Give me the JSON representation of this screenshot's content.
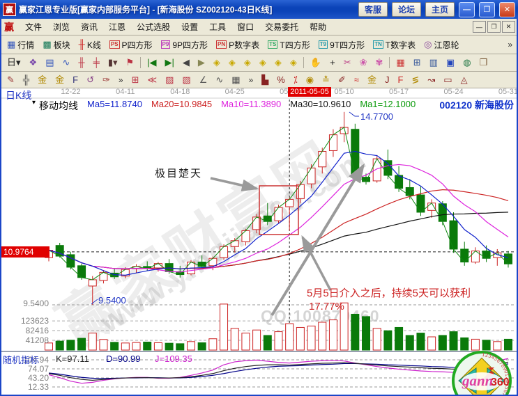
{
  "window": {
    "title": "赢家江恩专业版[赢家内部服务平台] - [新海股份  SZ002120-43日K线]",
    "logo_glyph": "赢",
    "buttons": [
      {
        "name": "service",
        "label": "客服"
      },
      {
        "name": "forum",
        "label": "论坛"
      },
      {
        "name": "home",
        "label": "主页"
      }
    ],
    "controls": {
      "minimize": "—",
      "maximize": "❐",
      "close": "✕"
    }
  },
  "menu": {
    "logo": "赢",
    "items": [
      "文件",
      "浏览",
      "资讯",
      "江恩",
      "公式选股",
      "设置",
      "工具",
      "窗口",
      "交易委托",
      "帮助"
    ],
    "controls": [
      "—",
      "❐",
      "✕"
    ]
  },
  "toolbar_main": {
    "overflow": "»",
    "items": [
      {
        "name": "quotes",
        "label": "行情",
        "glyph": "▦",
        "color": "#3355bb"
      },
      {
        "name": "sectors",
        "label": "板块",
        "glyph": "▩",
        "color": "#117755"
      },
      {
        "name": "kline",
        "label": "K线",
        "glyph": "╫",
        "color": "#cc2222"
      },
      {
        "name": "p-square",
        "label": "P四方形",
        "badge": "PS",
        "color": "#cc3333"
      },
      {
        "name": "9p-square",
        "label": "9P四方形",
        "badge": "P9",
        "color": "#bb33bb"
      },
      {
        "name": "p-digit-table",
        "label": "P数字表",
        "badge": "PN",
        "color": "#cc3333"
      },
      {
        "name": "t-square",
        "label": "T四方形",
        "badge": "TS",
        "color": "#33aa66"
      },
      {
        "name": "9t-square",
        "label": "9T四方形",
        "badge": "T9",
        "color": "#2299aa"
      },
      {
        "name": "t-digit-table",
        "label": "T数字表",
        "badge": "TN",
        "color": "#2299aa"
      },
      {
        "name": "gann-wheel",
        "label": "江恩轮",
        "glyph": "◎",
        "color": "#884499"
      }
    ]
  },
  "toolbar_nav": {
    "items": [
      {
        "name": "kline-period-day",
        "glyph": "日▾",
        "color": "#222222"
      },
      {
        "name": "pattern-tool",
        "glyph": "❖",
        "color": "#7744aa"
      },
      {
        "name": "info-panel",
        "glyph": "▤",
        "color": "#3355bb"
      },
      {
        "name": "trend-curve",
        "glyph": "∿",
        "color": "#3355bb"
      },
      {
        "name": "volume-columns",
        "glyph": "╫",
        "color": "#bb3344"
      },
      {
        "name": "bar-columns",
        "glyph": "╪",
        "color": "#bb3344"
      },
      {
        "name": "candle-style",
        "glyph": "▮▾",
        "color": "#553333"
      },
      {
        "name": "figure-tool",
        "glyph": "⚑",
        "color": "#bb3344"
      },
      {
        "sep": true
      },
      {
        "name": "first-bar",
        "glyph": "|◀",
        "color": "#117711"
      },
      {
        "name": "last-bar",
        "glyph": "▶|",
        "color": "#117711"
      },
      {
        "name": "prev-bar",
        "glyph": "◀",
        "color": "#444444"
      },
      {
        "name": "next-bar",
        "glyph": "▶",
        "color": "#888855"
      },
      {
        "name": "shift-left",
        "glyph": "◈",
        "color": "#c8a800"
      },
      {
        "name": "shift-right",
        "glyph": "◈",
        "color": "#c8a800"
      },
      {
        "name": "zoom-in-h",
        "glyph": "◈",
        "color": "#c8a800"
      },
      {
        "name": "zoom-out-h",
        "glyph": "◈",
        "color": "#c8a800"
      },
      {
        "name": "zoom-in-v",
        "glyph": "◈",
        "color": "#c8a800"
      },
      {
        "name": "zoom-out-v",
        "glyph": "◈",
        "color": "#c8a800"
      },
      {
        "sep": true
      },
      {
        "name": "drag-hand",
        "glyph": "✋",
        "color": "#996633"
      },
      {
        "name": "crosshair",
        "glyph": "+",
        "color": "#222222"
      },
      {
        "name": "annotate-tool",
        "glyph": "✂",
        "color": "#bb4488"
      },
      {
        "name": "flower-tool",
        "glyph": "❀",
        "color": "#cc55aa"
      },
      {
        "name": "mind-tool",
        "glyph": "✾",
        "color": "#cc55aa"
      },
      {
        "sep": true
      },
      {
        "name": "calendar",
        "glyph": "▦",
        "color": "#cc3333"
      },
      {
        "name": "calculator",
        "glyph": "⊞",
        "color": "#335599"
      },
      {
        "name": "notebook",
        "glyph": "▥",
        "color": "#335599"
      },
      {
        "name": "save-disk",
        "glyph": "▣",
        "color": "#2244bb"
      },
      {
        "name": "web-globe",
        "glyph": "◍",
        "color": "#227744"
      },
      {
        "name": "toolbox",
        "glyph": "❒",
        "color": "#775533"
      }
    ]
  },
  "toolbar_draw": {
    "overflow": "»",
    "groups": [
      [
        {
          "name": "draw-pencil",
          "glyph": "✎",
          "color": "#993333"
        },
        {
          "name": "grid-ruler",
          "glyph": "╬",
          "color": "#444444"
        },
        {
          "name": "gold-grid",
          "glyph": "金",
          "color": "#b08800"
        },
        {
          "name": "gold-channel",
          "glyph": "金",
          "color": "#b08800"
        },
        {
          "name": "fib-tool",
          "glyph": "F",
          "color": "#333377"
        },
        {
          "name": "arc-cycle",
          "glyph": "↺",
          "color": "#884488"
        },
        {
          "name": "brush-tool",
          "glyph": "✑",
          "color": "#993333"
        }
      ],
      [
        {
          "name": "gann-box-tool",
          "glyph": "⊞",
          "color": "#bb3344"
        },
        {
          "name": "gann-fan",
          "glyph": "≪",
          "color": "#bb3344"
        },
        {
          "name": "hatch-box",
          "glyph": "▨",
          "color": "#bb3344"
        },
        {
          "name": "hatch-box2",
          "glyph": "▧",
          "color": "#bb3344"
        },
        {
          "name": "trend-angle",
          "glyph": "∠",
          "color": "#555555"
        },
        {
          "name": "zigzag-line",
          "glyph": "∿",
          "color": "#555555"
        },
        {
          "name": "grid-overlay",
          "glyph": "▦",
          "color": "#555555"
        }
      ],
      [
        {
          "name": "stats-tool",
          "glyph": "▙",
          "color": "#882222"
        },
        {
          "name": "percent-change",
          "glyph": "%",
          "color": "#882222"
        },
        {
          "name": "percent-line",
          "glyph": "⁒",
          "color": "#cc2222"
        },
        {
          "name": "gold-circle",
          "glyph": "◉",
          "color": "#b08800"
        },
        {
          "name": "gold-level",
          "glyph": "≛",
          "color": "#b08800"
        },
        {
          "name": "marker-pen",
          "glyph": "✐",
          "color": "#882222"
        },
        {
          "name": "wave-rule",
          "glyph": "≈",
          "color": "#cc2222"
        },
        {
          "name": "gold-ratio",
          "glyph": "金",
          "color": "#b08800"
        },
        {
          "name": "j-line",
          "glyph": "J",
          "color": "#882222"
        },
        {
          "name": "f-line",
          "glyph": "F",
          "color": "#cc2222"
        },
        {
          "name": "band-tool",
          "glyph": "≶",
          "color": "#b08800"
        },
        {
          "name": "regress-line",
          "glyph": "↝",
          "color": "#882222"
        },
        {
          "name": "rect-zone",
          "glyph": "▭",
          "color": "#882222"
        },
        {
          "name": "tri-zone",
          "glyph": "◬",
          "color": "#882222"
        }
      ]
    ]
  },
  "chart": {
    "pane_label": "日K线",
    "legend": {
      "marker": "▾",
      "title": "移动均线",
      "ma5": "Ma5=11.8740",
      "ma20": "Ma20=10.9845",
      "ma10": "Ma10=11.3890",
      "ma30": "Ma30=10.9610",
      "ma1": "Ma1=12.1000"
    },
    "stock_label": "002120 新海股份",
    "date_badge": "2011-05-05",
    "price_badge": "10.9764",
    "price_axis_low": "9.5400",
    "low_callout": "9.5400",
    "high_callout": "14.7700",
    "volume_ticks": [
      "123623",
      "82416",
      "41208"
    ],
    "annotations": {
      "box_label": "极目楚天",
      "note_line1": "5月5日介入之后，持续5天可以获利",
      "note_line2": "17.77%"
    },
    "watermarks": {
      "brand": "赢家财富网",
      "site": "www.yingjia360.com",
      "qq": "QQ:100870460"
    }
  },
  "kdj": {
    "label": "随机指标",
    "k": "K=97.11",
    "d": "D=90.99",
    "j": "J=109.35",
    "ticks": [
      "104.94",
      "74.07",
      "43.20",
      "12.33"
    ]
  },
  "logo": {
    "word": "gann",
    "num": "360",
    "digits": "1234567890123456789012345"
  },
  "chart_data": {
    "type": "candlestick+volume+kdj",
    "title": "SZ002120 新海股份 43日K线",
    "x_dates": [
      {
        "label": "12-22",
        "index": 2
      },
      {
        "label": "04-11",
        "index": 7
      },
      {
        "label": "04-18",
        "index": 12
      },
      {
        "label": "04-25",
        "index": 17
      },
      {
        "label": "05-02",
        "index": 22
      },
      {
        "label": "05-10",
        "index": 27
      },
      {
        "label": "05-17",
        "index": 32
      },
      {
        "label": "05-24",
        "index": 37
      },
      {
        "label": "05-31",
        "index": 42
      }
    ],
    "highlight_index": 22,
    "price_gridline": 10.9764,
    "low_gridline": 9.54,
    "high_value": 14.77,
    "low_value": 9.54,
    "volume_grid": [
      123623,
      82416,
      41208
    ],
    "kdj_grid": [
      104.94,
      74.07,
      43.2,
      12.33
    ],
    "candles": [
      [
        10.82,
        11.12,
        10.72,
        11.02
      ],
      [
        11.15,
        11.22,
        10.82,
        10.86
      ],
      [
        10.9,
        10.98,
        10.5,
        10.56
      ],
      [
        10.6,
        10.66,
        10.22,
        10.28
      ],
      [
        10.05,
        10.32,
        9.54,
        10.22
      ],
      [
        10.2,
        10.48,
        10.12,
        10.42
      ],
      [
        10.4,
        10.52,
        10.24,
        10.3
      ],
      [
        10.32,
        10.56,
        10.26,
        10.5
      ],
      [
        10.52,
        10.64,
        10.4,
        10.58
      ],
      [
        10.58,
        10.72,
        10.46,
        10.52
      ],
      [
        10.54,
        10.7,
        10.44,
        10.66
      ],
      [
        10.66,
        10.78,
        10.38,
        10.44
      ],
      [
        10.44,
        10.6,
        10.28,
        10.36
      ],
      [
        10.38,
        10.75,
        10.34,
        10.7
      ],
      [
        10.7,
        10.88,
        10.52,
        10.58
      ],
      [
        10.6,
        10.85,
        10.48,
        10.8
      ],
      [
        10.82,
        11.18,
        10.76,
        11.12
      ],
      [
        11.12,
        11.35,
        10.96,
        11.28
      ],
      [
        11.25,
        11.6,
        11.15,
        11.55
      ],
      [
        11.58,
        12.0,
        11.48,
        11.92
      ],
      [
        11.95,
        12.3,
        11.7,
        11.8
      ],
      [
        11.82,
        12.25,
        11.75,
        12.18
      ],
      [
        12.2,
        12.45,
        11.55,
        12.4
      ],
      [
        12.42,
        12.9,
        12.3,
        12.8
      ],
      [
        12.82,
        13.35,
        12.7,
        13.25
      ],
      [
        13.28,
        13.8,
        13.1,
        13.7
      ],
      [
        13.72,
        14.3,
        13.55,
        14.15
      ],
      [
        14.18,
        14.77,
        13.95,
        14.35
      ],
      [
        14.3,
        14.45,
        13.0,
        13.05
      ],
      [
        13.0,
        13.1,
        12.8,
        12.88
      ],
      [
        12.9,
        13.6,
        12.85,
        13.5
      ],
      [
        13.45,
        13.75,
        12.95,
        13.05
      ],
      [
        13.05,
        13.3,
        12.6,
        12.7
      ],
      [
        12.72,
        12.95,
        12.4,
        12.5
      ],
      [
        12.52,
        12.75,
        11.95,
        12.05
      ],
      [
        12.1,
        12.4,
        11.9,
        12.3
      ],
      [
        12.28,
        12.35,
        11.7,
        11.8
      ],
      [
        11.82,
        12.05,
        10.95,
        11.05
      ],
      [
        11.05,
        11.25,
        10.6,
        10.7
      ],
      [
        10.7,
        11.1,
        10.65,
        11.0
      ],
      [
        11.0,
        11.15,
        10.7,
        10.8
      ],
      [
        10.82,
        11.05,
        10.6,
        10.95
      ],
      [
        10.92,
        11.0,
        10.55,
        10.65
      ]
    ],
    "volumes": [
      30000,
      38000,
      42000,
      50000,
      72000,
      45000,
      33000,
      30000,
      32000,
      34000,
      31000,
      29000,
      27000,
      36000,
      31000,
      48000,
      195000,
      92000,
      72000,
      85000,
      62000,
      78000,
      112000,
      96000,
      102000,
      118000,
      128000,
      200000,
      152000,
      142000,
      92000,
      82000,
      96000,
      62000,
      72000,
      56000,
      62000,
      78000,
      52000,
      46000,
      42000,
      36000,
      46000
    ],
    "kdj": {
      "k": [
        58,
        52,
        44,
        38,
        35,
        38,
        41,
        43,
        44,
        44,
        43,
        43,
        44,
        47,
        52,
        58,
        68,
        76,
        82,
        86,
        88,
        88,
        87,
        89,
        91,
        93,
        94,
        95,
        93,
        90,
        87,
        84,
        82,
        80,
        78,
        76,
        75,
        73,
        74,
        78,
        84,
        91,
        97.11
      ],
      "d": [
        60,
        56,
        50,
        45,
        42,
        41,
        42,
        43,
        43,
        44,
        44,
        43,
        43,
        45,
        48,
        52,
        58,
        65,
        71,
        76,
        80,
        83,
        84,
        85,
        87,
        89,
        90,
        92,
        92,
        91,
        90,
        88,
        87,
        85,
        84,
        82,
        81,
        79,
        78,
        79,
        82,
        86,
        90.99
      ],
      "j": [
        54,
        44,
        32,
        25,
        28,
        35,
        40,
        43,
        45,
        45,
        42,
        42,
        45,
        52,
        60,
        70,
        88,
        98,
        102,
        104,
        100,
        96,
        94,
        97,
        100,
        102,
        103,
        101,
        94,
        88,
        82,
        77,
        73,
        70,
        67,
        65,
        64,
        62,
        66,
        77,
        89,
        101,
        109.35
      ]
    },
    "colors": {
      "up": "#cc2222",
      "down": "#0a7a0a",
      "ma5": "#1122cc",
      "ma10": "#dd22dd",
      "ma20": "#cc2222",
      "ma30": "#111111",
      "close_line": "#118811",
      "k": "#222222",
      "d": "#000088",
      "j": "#cc22cc",
      "accent_red": "#e00000",
      "grid": "#aaaaaa"
    }
  }
}
